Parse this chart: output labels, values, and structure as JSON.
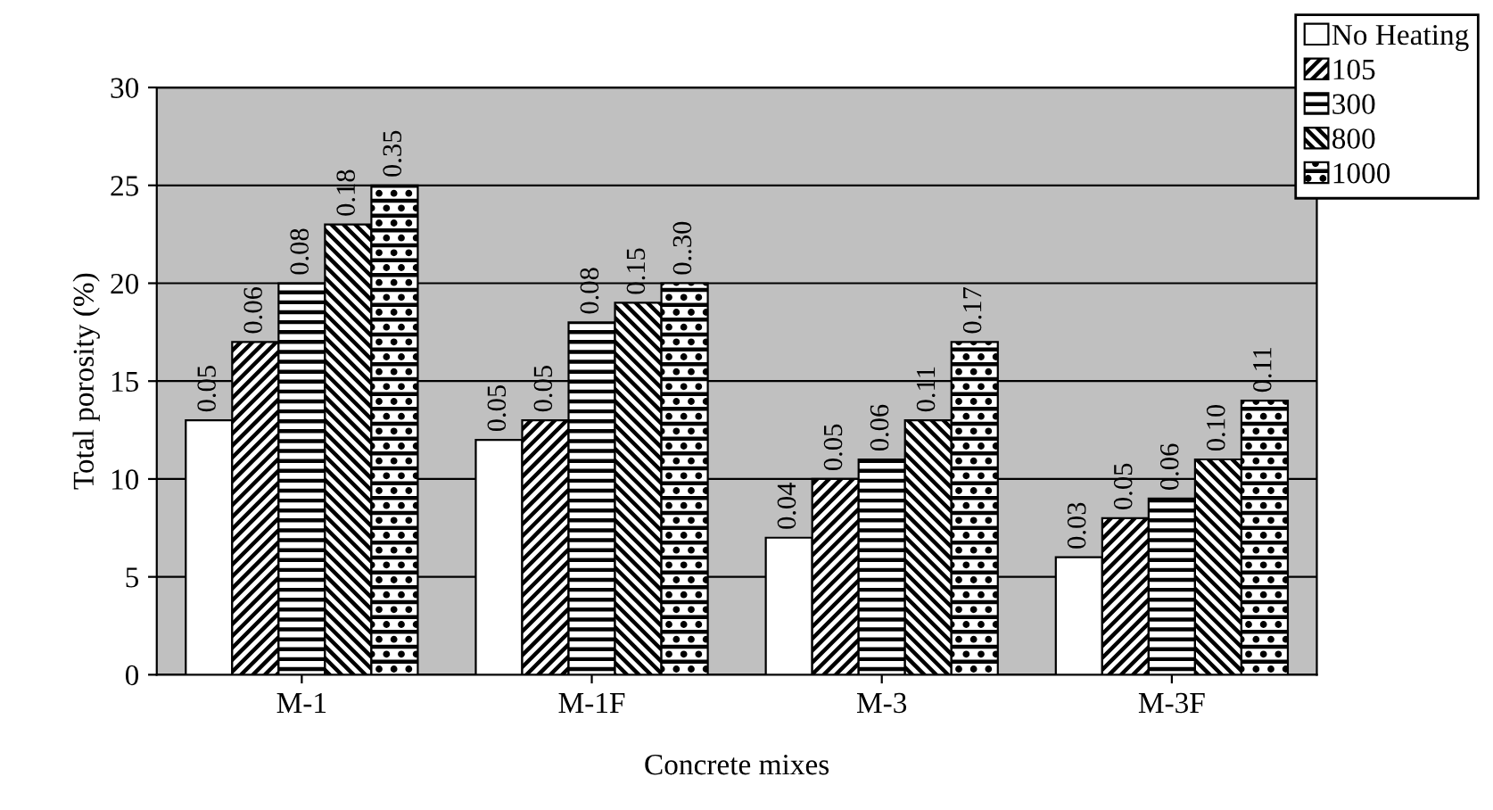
{
  "chart_data": {
    "type": "bar",
    "xlabel": "Concrete mixes",
    "ylabel": "Total porosity (%)",
    "categories": [
      "M-1",
      "M-1F",
      "M-3",
      "M-3F"
    ],
    "ylim": [
      0,
      30
    ],
    "yticks": [
      0,
      5,
      10,
      15,
      20,
      25,
      30
    ],
    "grid": "y",
    "legend": "top right",
    "series": [
      {
        "name": "No Heating",
        "color": "#ffffff",
        "values": [
          13,
          12,
          7,
          6
        ]
      },
      {
        "name": "105",
        "color": "#000000",
        "values": [
          17,
          13,
          10,
          8
        ]
      },
      {
        "name": "300",
        "color": "#000000",
        "values": [
          20,
          18,
          11,
          9
        ]
      },
      {
        "name": "800",
        "color": "#000000",
        "values": [
          23,
          19,
          13,
          11
        ]
      },
      {
        "name": "1000",
        "color": "#000000",
        "values": [
          25,
          20,
          17,
          14
        ]
      }
    ],
    "annotations": [
      "0.05",
      "0.06",
      "0.08",
      "0.18",
      "0.35",
      "0.05",
      "0.05",
      "0.08",
      "0.15",
      "0..30",
      "0.04",
      "0.05",
      "0.06",
      "0.11",
      "0.17",
      "0.03",
      "0.05",
      "0.06",
      "0.10",
      "0.11"
    ]
  }
}
